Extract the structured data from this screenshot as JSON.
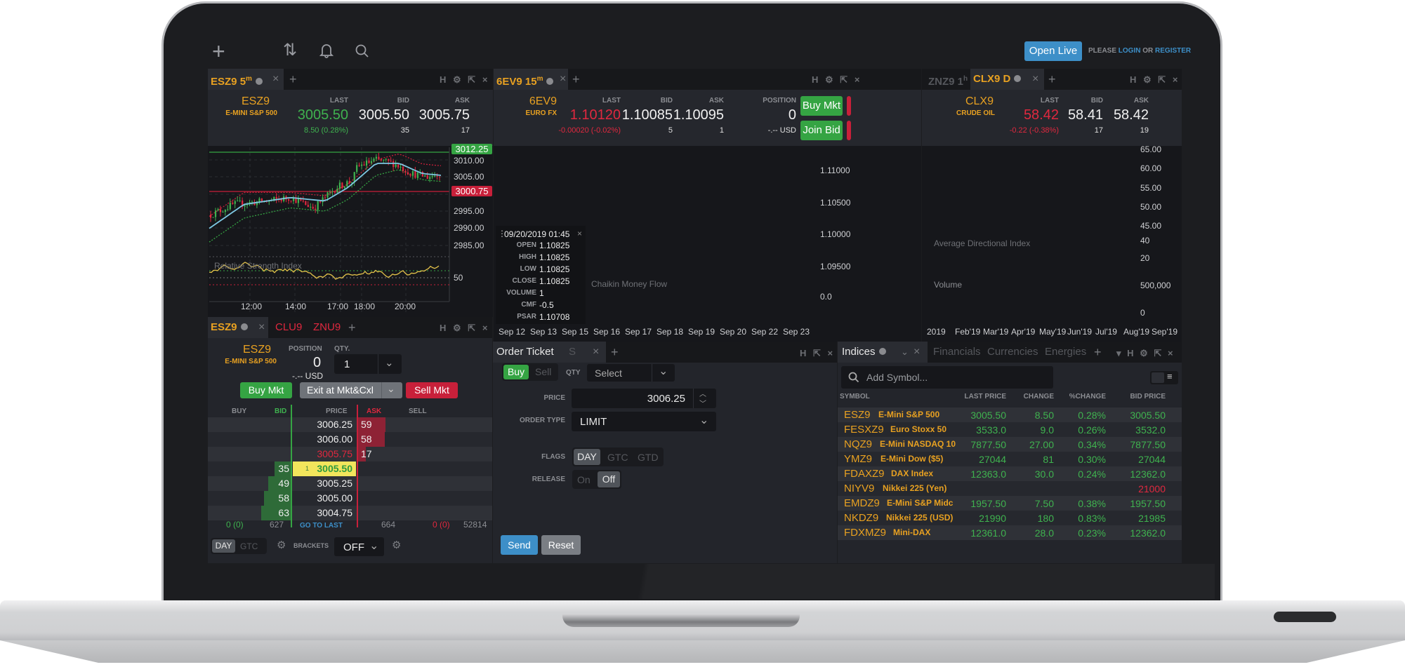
{
  "toolbar": {
    "icons": [
      "plus-icon",
      "arrows-up-down-icon",
      "bell-icon",
      "search-icon"
    ],
    "open_live": "Open Live",
    "please": "PLEASE",
    "login": "LOGIN",
    "or": "OR",
    "register": "REGISTER"
  },
  "panel_controls": {
    "h": "H",
    "settings": "⚙",
    "popout": "⇱",
    "close": "×",
    "add": "+"
  },
  "colors": {
    "up": "#3fb24f",
    "down": "#e0283f",
    "symbol": "#e8a121",
    "accent": "#3d8fc8",
    "panel": "#23252b",
    "chart_bg": "#16171b"
  },
  "chart1": {
    "tab_symbol": "ESZ9",
    "tab_interval": "5",
    "tab_unit": "m",
    "symbol": "ESZ9",
    "name": "E-MINI S&P 500",
    "last_label": "LAST",
    "bid_label": "BID",
    "ask_label": "ASK",
    "last": "3005.50",
    "change": "8.50 (0.28%)",
    "bid": "3005.50",
    "bid_size": "35",
    "ask": "3005.75",
    "ask_size": "17",
    "high_badge": "3012.25",
    "ask_badge": "3000.75",
    "price_axis": [
      "3010.00",
      "3005.00",
      "2995.00",
      "2990.00",
      "2985.00"
    ],
    "indicator": "Relative Strength Index",
    "indicator_axis": "50",
    "time_axis": [
      "12:00",
      "14:00",
      "17:00",
      "18:00",
      "20:00"
    ]
  },
  "chart2": {
    "tab_symbol": "6EV9",
    "tab_interval": "15",
    "tab_unit": "m",
    "symbol": "6EV9",
    "name": "EURO FX",
    "last_label": "LAST",
    "bid_label": "BID",
    "ask_label": "ASK",
    "position_label": "POSITION",
    "last": "1.10120",
    "change": "-0.00020 (-0.02%)",
    "bid": "1.10085",
    "bid_size": "5",
    "ask": "1.10095",
    "ask_size": "1",
    "position": "0",
    "position_usd": "-.-- USD",
    "buy_mkt": "Buy Mkt",
    "join_bid": "Join Bid",
    "price_axis": [
      "1.11000",
      "1.10500",
      "1.10000",
      "1.09500"
    ],
    "indicator": "Chaikin Money Flow",
    "indicator_axis": "0.0",
    "date_axis": [
      "Sep 12",
      "Sep 13",
      "Sep 15",
      "Sep 16",
      "Sep 17",
      "Sep 18",
      "Sep 19",
      "Sep 20",
      "Sep 22",
      "Sep 23"
    ],
    "tooltip": {
      "date": "09/20/2019 01:45",
      "rows": [
        {
          "label": "OPEN",
          "value": "1.10825"
        },
        {
          "label": "HIGH",
          "value": "1.10825"
        },
        {
          "label": "LOW",
          "value": "1.10825"
        },
        {
          "label": "CLOSE",
          "value": "1.10825"
        },
        {
          "label": "VOLUME",
          "value": "1"
        },
        {
          "label": "CMF",
          "value": "-0.5"
        },
        {
          "label": "PSAR",
          "value": "1.10708"
        }
      ]
    }
  },
  "chart3": {
    "inactive_tab_symbol": "ZNZ9",
    "inactive_tab_interval": "1",
    "inactive_tab_unit": "h",
    "tab_symbol": "CLX9",
    "tab_interval": "D",
    "symbol": "CLX9",
    "name": "CRUDE OIL",
    "last_label": "LAST",
    "bid_label": "BID",
    "ask_label": "ASK",
    "last": "58.42",
    "change": "-0.22 (-0.38%)",
    "bid": "58.41",
    "bid_size": "17",
    "ask": "58.42",
    "ask_size": "19",
    "price_axis": [
      "65.00",
      "60.00",
      "55.00",
      "50.00",
      "45.00"
    ],
    "adx": "Average Directional Index",
    "adx_axis": [
      "40",
      "20"
    ],
    "volume": "Volume",
    "volume_axis": [
      "500,000",
      "0"
    ],
    "date_axis": [
      "2019",
      "Feb'19",
      "Mar'19",
      "Apr'19",
      "May'19",
      "Jun'19",
      "Jul'19",
      "Aug'19",
      "Sep'19"
    ]
  },
  "dom": {
    "tabs": [
      "ESZ9",
      "CLU9",
      "ZNU9"
    ],
    "symbol": "ESZ9",
    "name": "E-MINI S&P 500",
    "position_label": "POSITION",
    "position": "0",
    "position_usd": "-.-- USD",
    "qty_label": "QTY.",
    "qty": "1",
    "buy": "Buy Mkt",
    "exit": "Exit at Mkt&Cxl",
    "sell": "Sell Mkt",
    "columns": [
      "BUY",
      "BID",
      "PRICE",
      "ASK",
      "SELL"
    ],
    "rows": [
      {
        "bid": "",
        "price": "3006.25",
        "ask": "59"
      },
      {
        "bid": "",
        "price": "3006.00",
        "ask": "58"
      },
      {
        "bid": "",
        "price": "3005.75",
        "ask": "17"
      },
      {
        "bid": "35",
        "price": "3005.50",
        "ask": "",
        "last_qty": "1"
      },
      {
        "bid": "49",
        "price": "3005.25",
        "ask": ""
      },
      {
        "bid": "58",
        "price": "3005.00",
        "ask": ""
      },
      {
        "bid": "63",
        "price": "3004.75",
        "ask": ""
      }
    ],
    "footer": {
      "buy": "0 (0)",
      "bid": "627",
      "go_to_last": "GO TO LAST",
      "ask": "664",
      "sell": "0 (0)",
      "volume": "52814"
    },
    "tif": [
      "DAY",
      "GTC"
    ],
    "brackets_label": "BRACKETS",
    "brackets": "OFF"
  },
  "order_ticket": {
    "tab": "Order Ticket",
    "tab2": "S",
    "side": [
      "Buy",
      "Sell"
    ],
    "qty_label": "QTY",
    "qty_placeholder": "Select",
    "price_label": "PRICE",
    "price": "3006.25",
    "order_type_label": "ORDER TYPE",
    "order_type": "LIMIT",
    "flags_label": "FLAGS",
    "flags": [
      "DAY",
      "GTC",
      "GTD"
    ],
    "release_label": "RELEASE",
    "release": [
      "On",
      "Off"
    ],
    "send": "Send",
    "reset": "Reset"
  },
  "watchlist": {
    "tabs": [
      "Indices",
      "Financials",
      "Currencies",
      "Energies"
    ],
    "search_placeholder": "Add Symbol...",
    "columns": [
      "SYMBOL",
      "LAST PRICE",
      "CHANGE",
      "%CHANGE",
      "BID PRICE"
    ],
    "rows": [
      {
        "symbol": "ESZ9",
        "name": "E-Mini S&P 500",
        "last": "3005.50",
        "change": "8.50",
        "pct": "0.28%",
        "bid": "3005.50"
      },
      {
        "symbol": "FESXZ9",
        "name": "Euro Stoxx 50",
        "last": "3533.0",
        "change": "9.0",
        "pct": "0.26%",
        "bid": "3532.0"
      },
      {
        "symbol": "NQZ9",
        "name": "E-Mini NASDAQ 10",
        "last": "7877.50",
        "change": "27.00",
        "pct": "0.34%",
        "bid": "7877.50"
      },
      {
        "symbol": "YMZ9",
        "name": "E-Mini Dow ($5)",
        "last": "27044",
        "change": "81",
        "pct": "0.30%",
        "bid": "27044"
      },
      {
        "symbol": "FDAXZ9",
        "name": "DAX Index",
        "last": "12363.0",
        "change": "30.0",
        "pct": "0.24%",
        "bid": "12362.0"
      },
      {
        "symbol": "NIYV9",
        "name": "Nikkei 225 (Yen)",
        "last": "",
        "change": "",
        "pct": "",
        "bid": "21000"
      },
      {
        "symbol": "EMDZ9",
        "name": "E-Mini S&P Midc",
        "last": "1957.50",
        "change": "7.50",
        "pct": "0.38%",
        "bid": "1957.50"
      },
      {
        "symbol": "NKDZ9",
        "name": "Nikkei 225 (USD)",
        "last": "21990",
        "change": "180",
        "pct": "0.83%",
        "bid": "21985"
      },
      {
        "symbol": "FDXMZ9",
        "name": "Mini-DAX",
        "last": "12361.0",
        "change": "28.0",
        "pct": "0.23%",
        "bid": "12362.0"
      }
    ]
  }
}
